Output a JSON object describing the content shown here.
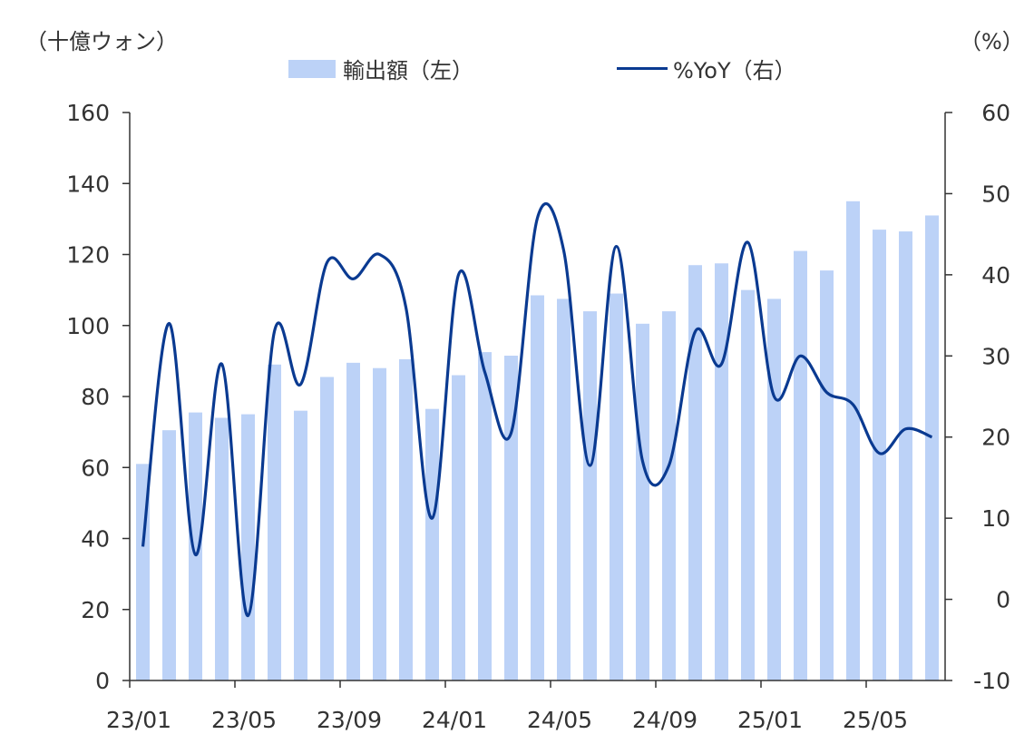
{
  "chart_data": {
    "type": "bar",
    "left_axis_unit": "（十億ウォン）",
    "right_axis_unit": "（%）",
    "x": [
      "23/01",
      "23/02",
      "23/03",
      "23/04",
      "23/05",
      "23/06",
      "23/07",
      "23/08",
      "23/09",
      "23/10",
      "23/11",
      "23/12",
      "24/01",
      "24/02",
      "24/03",
      "24/04",
      "24/05",
      "24/06",
      "24/07",
      "24/08",
      "24/09",
      "24/10",
      "24/11",
      "24/12",
      "25/01",
      "25/02",
      "25/03",
      "25/04",
      "25/05",
      "25/06",
      "25/07"
    ],
    "x_tick_labels": [
      "23/01",
      "23/05",
      "23/09",
      "24/01",
      "24/05",
      "24/09",
      "25/01",
      "25/05"
    ],
    "series": [
      {
        "name": "輸出額（左）",
        "type": "bar",
        "axis": "left",
        "color": "#bcd2f7",
        "values": [
          61,
          70.5,
          75.5,
          74,
          75,
          89,
          76,
          85.5,
          89.5,
          88,
          90.5,
          76.5,
          86,
          92.5,
          91.5,
          108.5,
          107.5,
          104,
          109,
          100.5,
          104,
          117,
          117.5,
          110,
          107.5,
          121,
          115.5,
          135,
          127,
          126.5,
          131
        ]
      },
      {
        "name": "%YoY（右）",
        "type": "line",
        "axis": "right",
        "color": "#0a3a91",
        "values": [
          6.5,
          34,
          5.5,
          29,
          -2,
          33,
          26.5,
          41.5,
          39.5,
          42.5,
          36,
          10,
          40,
          28,
          20.5,
          47,
          43,
          16.5,
          43.5,
          17,
          16.5,
          33,
          29,
          44,
          25,
          30,
          25.5,
          24,
          18,
          21,
          20
        ]
      }
    ],
    "left_axis": {
      "min": 0,
      "max": 160,
      "ticks": [
        0,
        20,
        40,
        60,
        80,
        100,
        120,
        140,
        160
      ]
    },
    "right_axis": {
      "min": -10,
      "max": 60,
      "ticks": [
        -10,
        0,
        10,
        20,
        30,
        40,
        50,
        60
      ]
    },
    "grid": false,
    "legend_position": "top-center"
  }
}
